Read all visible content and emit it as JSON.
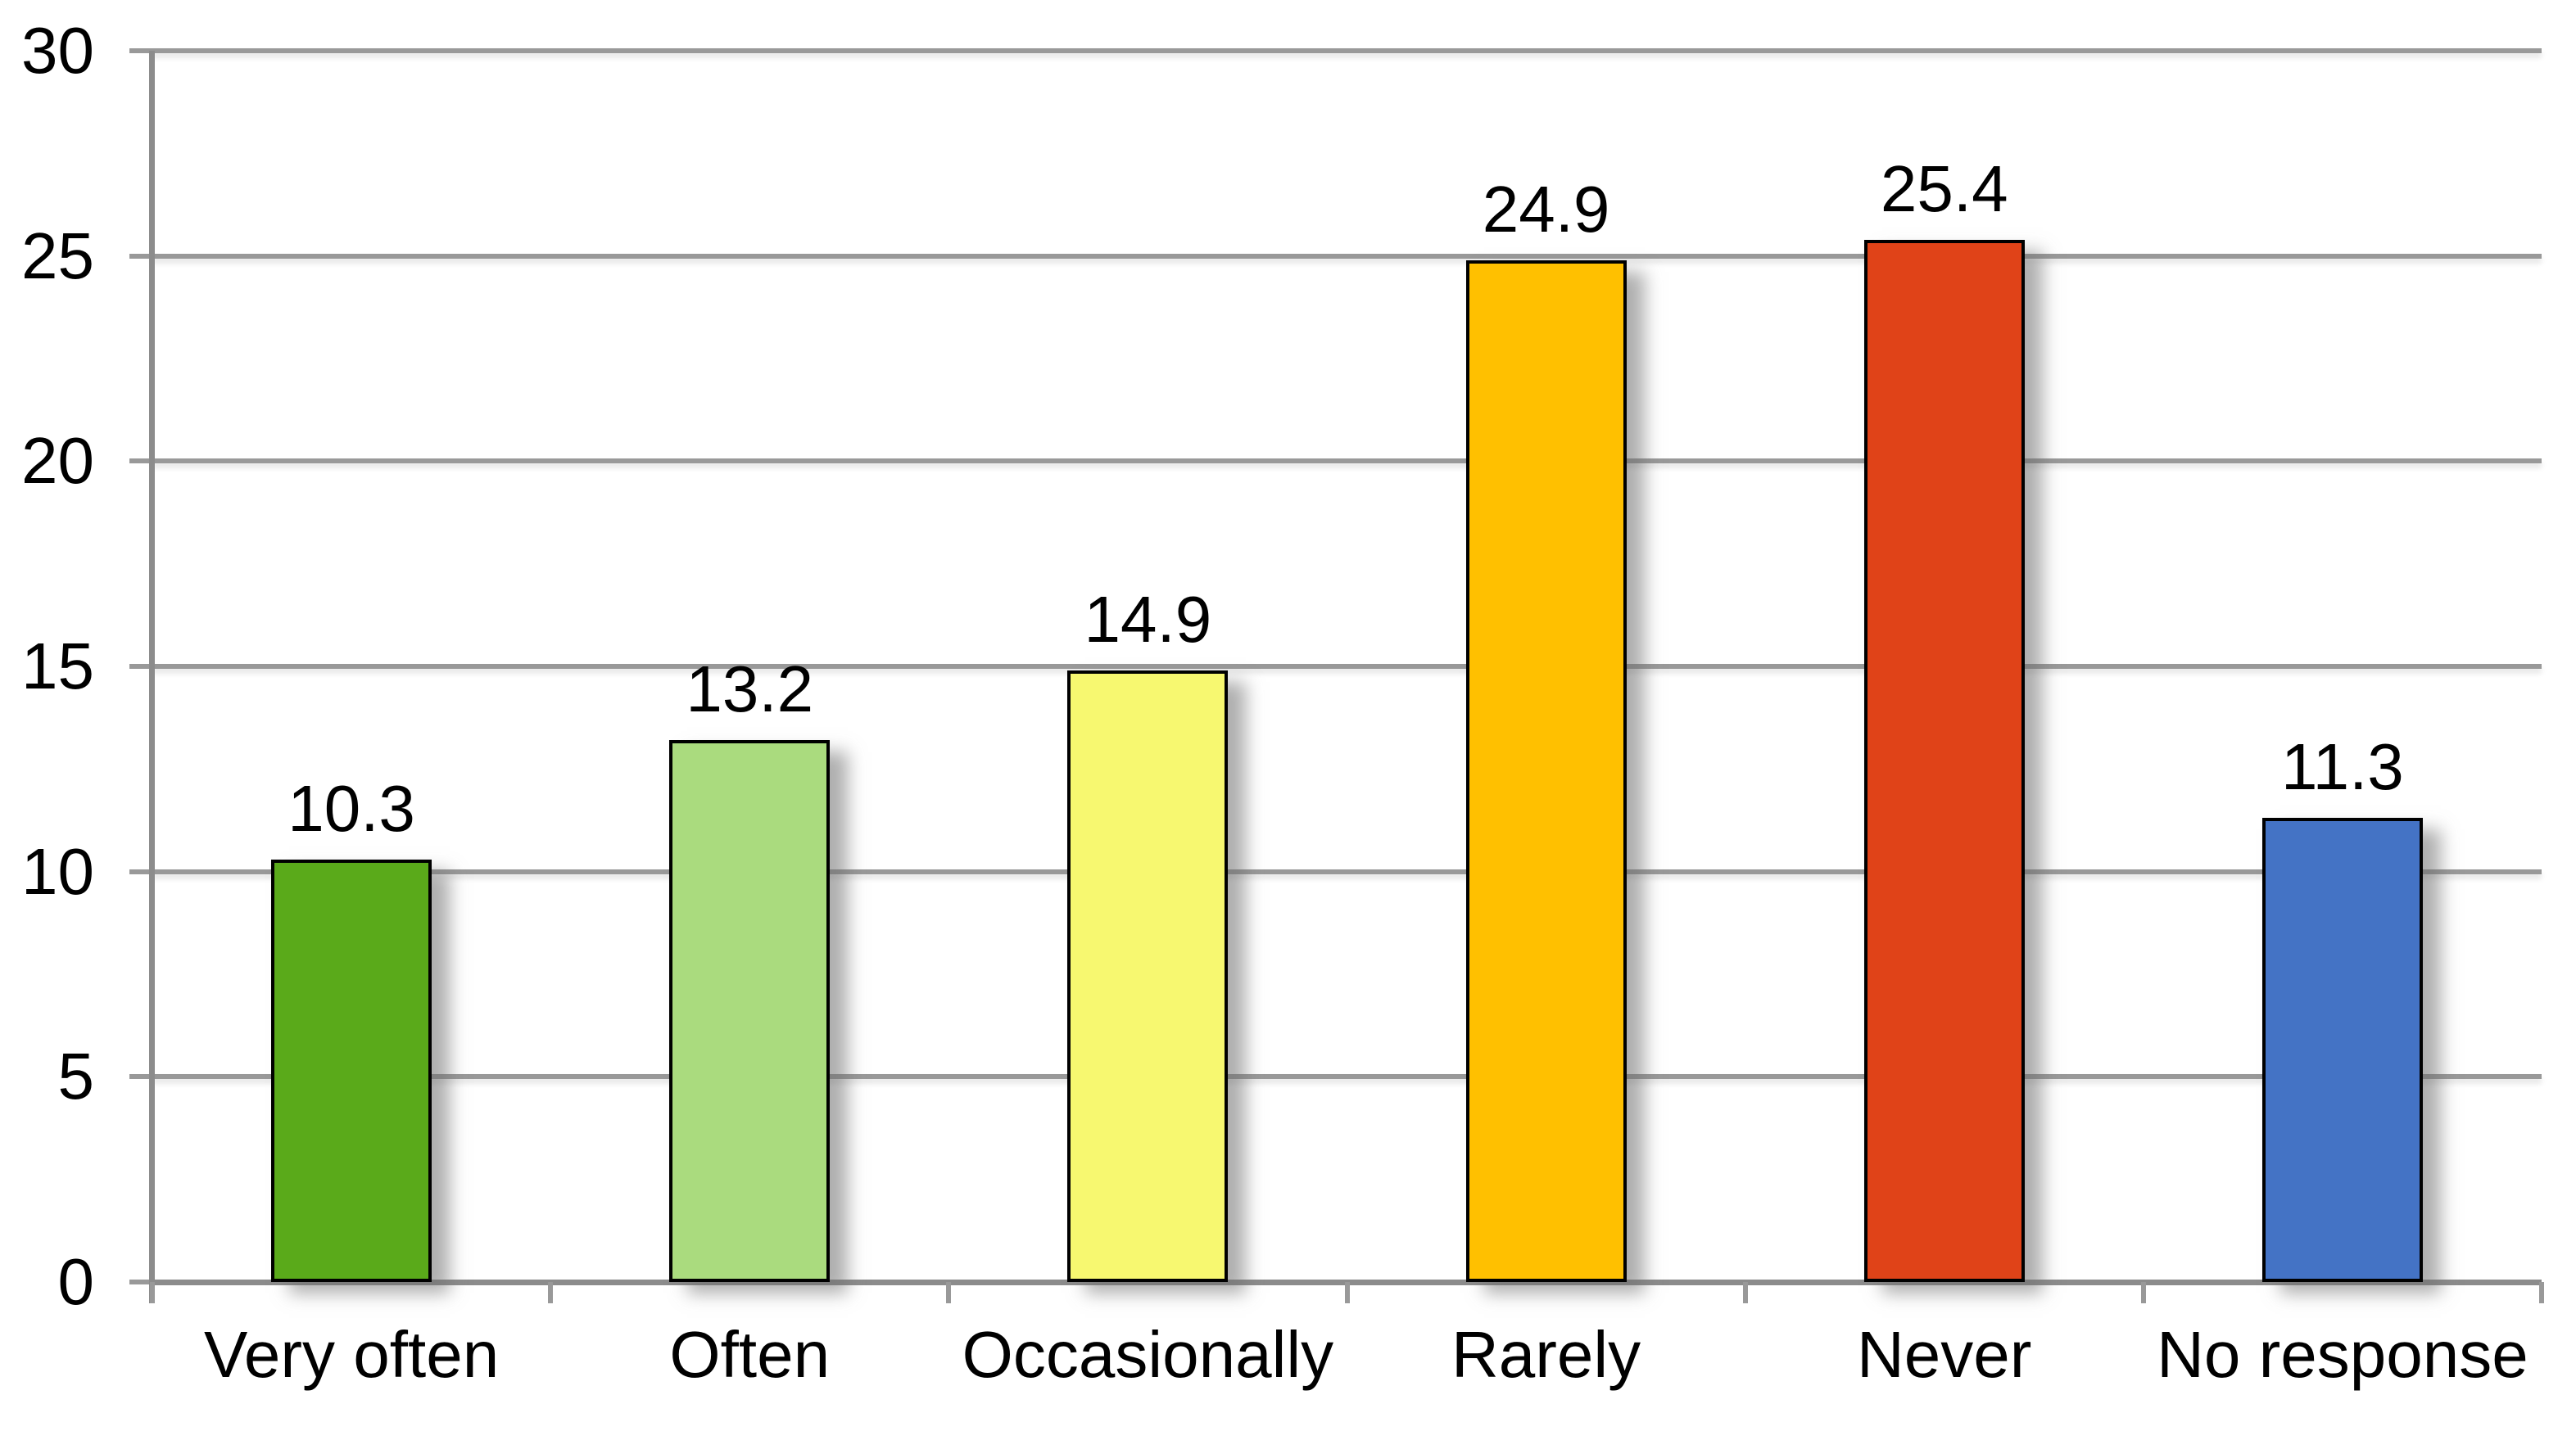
{
  "chart_data": {
    "type": "bar",
    "title": "",
    "xlabel": "",
    "ylabel": "",
    "categories": [
      "Very often",
      "Often",
      "Occasionally",
      "Rarely",
      "Never",
      "No response"
    ],
    "values": [
      10.3,
      13.2,
      14.9,
      24.9,
      25.4,
      11.3
    ],
    "value_labels": [
      "10.3",
      "13.2",
      "14.9",
      "24.9",
      "25.4",
      "11.3"
    ],
    "bar_colors": [
      "#5AAA1A",
      "#AADB7E",
      "#F7F870",
      "#FFC000",
      "#E04318",
      "#4473C5"
    ],
    "ylim": [
      0,
      30
    ],
    "yticks": [
      0,
      5,
      10,
      15,
      20,
      25,
      30
    ],
    "ytick_labels": [
      "0",
      "5",
      "10",
      "15",
      "20",
      "25",
      "30"
    ],
    "grid": true,
    "legend": "none",
    "colors": {
      "gridline": "#999999",
      "axis": "#8C8C8C",
      "bar_border": "#000000",
      "text": "#000000",
      "background": "#FFFFFF"
    }
  }
}
